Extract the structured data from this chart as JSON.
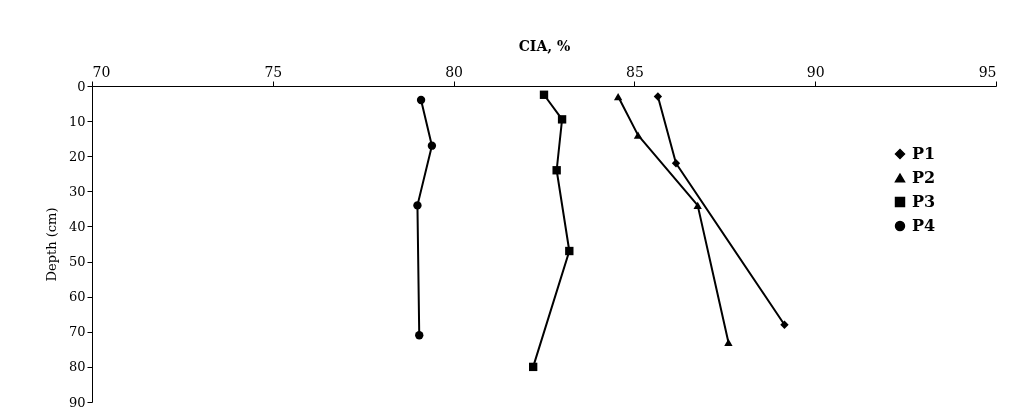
{
  "chart_data": {
    "type": "line",
    "xlabel": "CIA, %",
    "ylabel": "Depth (cm)",
    "xlim": [
      70,
      95
    ],
    "xticks": [
      70,
      75,
      80,
      85,
      90,
      95
    ],
    "ylim": [
      90,
      0
    ],
    "yticks": [
      0,
      10,
      20,
      30,
      40,
      50,
      60,
      70,
      80,
      90
    ],
    "legend": "top right",
    "series": [
      {
        "name": "P1",
        "color": "#000000",
        "marker": "diamond",
        "x": [
          85.65,
          86.15,
          89.15
        ],
        "values": [
          3,
          22,
          68
        ]
      },
      {
        "name": "P2",
        "color": "#000000",
        "marker": "triangle",
        "x": [
          84.55,
          85.1,
          86.75,
          87.6
        ],
        "values": [
          3,
          14,
          34,
          73
        ]
      },
      {
        "name": "P3",
        "color": "#000000",
        "marker": "square",
        "x": [
          82.5,
          83.0,
          82.85,
          83.2,
          82.2
        ],
        "values": [
          2.5,
          9.5,
          24,
          47,
          80
        ]
      },
      {
        "name": "P4",
        "color": "#000000",
        "marker": "circle",
        "x": [
          79.1,
          79.4,
          79.0,
          79.05
        ],
        "values": [
          4,
          17,
          34,
          71
        ]
      }
    ]
  }
}
